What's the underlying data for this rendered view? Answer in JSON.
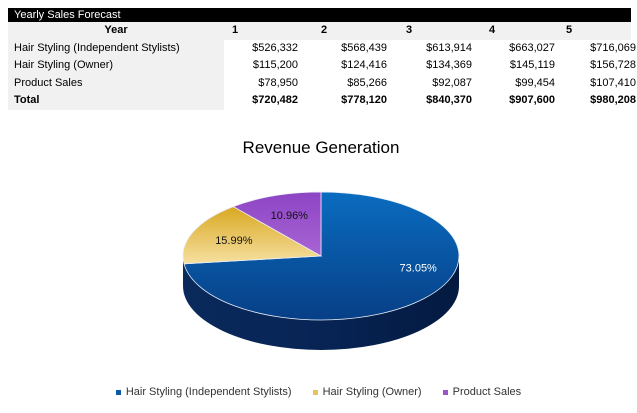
{
  "table": {
    "title": "Yearly Sales Forecast",
    "header": [
      "Year",
      "1",
      "2",
      "3",
      "4",
      "5"
    ],
    "rows": [
      {
        "label": "Hair Styling (Independent Stylists)",
        "values": [
          "$526,332",
          "$568,439",
          "$613,914",
          "$663,027",
          "$716,069"
        ]
      },
      {
        "label": "Hair Styling (Owner)",
        "values": [
          "$115,200",
          "$124,416",
          "$134,369",
          "$145,119",
          "$156,728"
        ]
      },
      {
        "label": "Product Sales",
        "values": [
          "$78,950",
          "$85,266",
          "$92,087",
          "$99,454",
          "$107,410"
        ]
      },
      {
        "label": "Total",
        "values": [
          "$720,482",
          "$778,120",
          "$840,370",
          "$907,600",
          "$980,208"
        ]
      }
    ]
  },
  "chart_data": {
    "type": "pie",
    "style": "3d",
    "title": "Revenue Generation",
    "categories": [
      "Hair Styling (Independent Stylists)",
      "Hair Styling (Owner)",
      "Product Sales"
    ],
    "values": [
      73.05,
      15.99,
      10.96
    ],
    "labels": [
      "73.05%",
      "15.99%",
      "10.96%"
    ],
    "colors": [
      "#0a5aa8",
      "#e8c25a",
      "#9a55c8"
    ],
    "legend": "bottom"
  }
}
